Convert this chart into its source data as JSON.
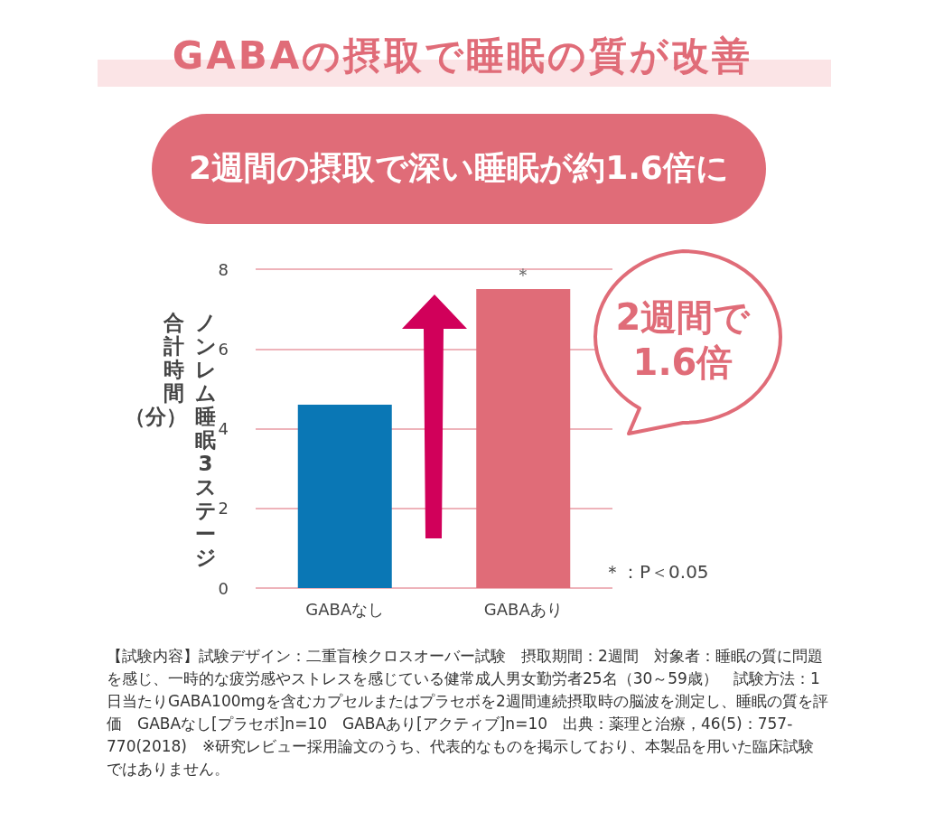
{
  "chart_data": {
    "type": "bar",
    "title": "GABAの摂取で睡眠の質が改善",
    "subtitle": "2週間の摂取で深い睡眠が約1.6倍に",
    "ylabel": "ノンレム睡眠3ステージ合計時間（分）",
    "categories": [
      "GABAなし",
      "GABAあり"
    ],
    "values": [
      4.6,
      7.5
    ],
    "colors": [
      "#0a77b5",
      "#e06c78"
    ],
    "ylim": [
      0,
      8
    ],
    "yticks": [
      0,
      2,
      4,
      6,
      8
    ],
    "grid": "y",
    "annotations": [
      {
        "text": "＊",
        "x": "GABAあり",
        "y": 7.5
      },
      "＊：P＜0.05",
      "2週間で\n1.6倍",
      "【試験内容】試験デザイン：二重盲検クロスオーバー試験　摂取期間：2週間　対象者：睡眠の質に問題を感じ、一時的な疲労感やストレスを感じている健常成人男女勤労者25名（30～59歳）　試験方法：1日当たりGABA100mgを含むカプセルまたはプラセボを2週間連続摂取時の脳波を測定し、睡眠の質を評価　GABAなし[プラセボ]n=10　GABAあり[アクティブ]n=10　出典：薬理と治療，46(5)：757-770(2018)　※研究レビュー採用論文のうち、代表的なものを掲示しており、本製品を用いた臨床試験ではありません。"
    ]
  }
}
